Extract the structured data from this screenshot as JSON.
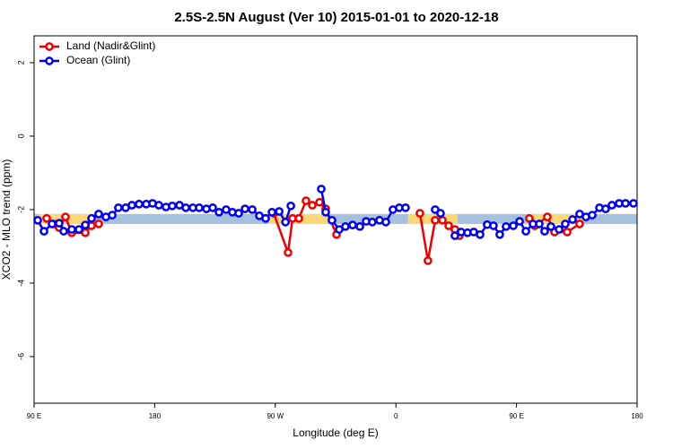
{
  "chart_data": {
    "type": "line",
    "title": "2.5S-2.5N August (Ver 10)   2015-01-01 to 2020-12-18",
    "x_label": "Longitude (deg E)",
    "y_label": "XCO2 - MLO trend (ppm)",
    "xlim": [
      90,
      540
    ],
    "xticks": [
      {
        "value": 90,
        "label": "90 E"
      },
      180,
      {
        "value": 270,
        "label": "90 W"
      },
      {
        "value": 360,
        "label": "0"
      },
      {
        "value": 450,
        "label": "90 E"
      },
      {
        "value": 540,
        "label": "180"
      }
    ],
    "ylim": [
      -7.27,
      2.73
    ],
    "yticks": [
      2,
      0,
      -2,
      -4,
      -6
    ],
    "legend": "top-left",
    "mask_band": {
      "range": [
        -2.39,
        -2.12
      ],
      "ocean_color": "#a8c0e0",
      "land_color": "#f8d878",
      "land_segments": [
        [
          92.7,
          131.5
        ],
        [
          265.4,
          309
        ],
        [
          369,
          406
        ],
        [
          459.6,
          499.8
        ]
      ]
    },
    "series": [
      {
        "name": "Land (Nadir&Glint)",
        "color": "#ee0000",
        "x": [
          99.4,
          104.7,
          108.7,
          113.4,
          118.1,
          128.2,
          132.9,
          138.2,
          null,
          268.8,
          279.5,
          282.9,
          287.6,
          292.9,
          297.6,
          303.0,
          307.6,
          315.7,
          null,
          377.9,
          383.9,
          389.3,
          394.7,
          399.4,
          404.0,
          407.4,
          null,
          459.6,
          463.6,
          473.0,
          478.4,
          487.8,
          497.1
        ],
        "values": [
          -2.24,
          -2.39,
          -2.49,
          -2.2,
          -2.63,
          -2.63,
          -2.44,
          -2.39,
          null,
          -2.1,
          -3.17,
          -2.24,
          -2.24,
          -1.76,
          -1.88,
          -1.8,
          -1.98,
          -2.68,
          null,
          -2.1,
          -3.39,
          -2.29,
          -2.29,
          -2.44,
          -2.54,
          -2.71,
          null,
          -2.24,
          -2.44,
          -2.2,
          -2.61,
          -2.61,
          -2.39
        ]
      },
      {
        "name": "Ocean (Glint)",
        "color": "#0000ee",
        "x": [
          92.7,
          97.4,
          103.4,
          108.7,
          112.1,
          118.1,
          123.5,
          128.2,
          132.9,
          138.2,
          143.6,
          148.3,
          152.9,
          158.3,
          163.0,
          168.3,
          173.7,
          178.4,
          183.1,
          188.4,
          193.1,
          198.5,
          203.2,
          208.5,
          213.2,
          218.6,
          223.3,
          228.0,
          233.3,
          238.0,
          242.7,
          247.4,
          252.8,
          258.1,
          262.8,
          267.5,
          272.9,
          277.6,
          281.6,
          null,
          304.3,
          307.6,
          312.3,
          317.7,
          322.3,
          327.7,
          333.1,
          337.8,
          342.4,
          347.8,
          352.5,
          357.8,
          362.5,
          367.2,
          null,
          389.3,
          393.3,
          null,
          404.0,
          408.7,
          413.4,
          418.1,
          422.8,
          428.1,
          432.8,
          437.5,
          442.2,
          447.6,
          452.3,
          457.0,
          462.3,
          467.0,
          471.0,
          475.7,
          481.8,
          486.4,
          491.8,
          497.1,
          501.8,
          506.5,
          511.9,
          516.5,
          521.2,
          526.6,
          531.3,
          537.3
        ],
        "values": [
          -2.29,
          -2.59,
          -2.39,
          -2.37,
          -2.59,
          -2.54,
          -2.54,
          -2.42,
          -2.24,
          -2.12,
          -2.2,
          -2.15,
          -1.95,
          -1.95,
          -1.88,
          -1.85,
          -1.85,
          -1.83,
          -1.88,
          -1.93,
          -1.9,
          -1.88,
          -1.95,
          -1.95,
          -1.95,
          -1.98,
          -1.95,
          -2.07,
          -2.0,
          -2.07,
          -2.1,
          -1.98,
          -2.0,
          -2.17,
          -2.24,
          -2.07,
          -2.05,
          -2.34,
          -1.9,
          null,
          -1.44,
          -2.07,
          -2.29,
          -2.54,
          -2.46,
          -2.42,
          -2.46,
          -2.32,
          -2.34,
          -2.29,
          -2.34,
          -2.0,
          -1.95,
          -1.95,
          null,
          -2.0,
          -2.1,
          null,
          -2.71,
          -2.61,
          -2.63,
          -2.61,
          -2.68,
          -2.41,
          -2.44,
          -2.68,
          -2.46,
          -2.44,
          -2.32,
          -2.59,
          -2.39,
          -2.39,
          -2.59,
          -2.46,
          -2.54,
          -2.39,
          -2.27,
          -2.12,
          -2.2,
          -2.15,
          -1.95,
          -1.98,
          -1.88,
          -1.83,
          -1.83,
          -1.83
        ]
      }
    ]
  }
}
